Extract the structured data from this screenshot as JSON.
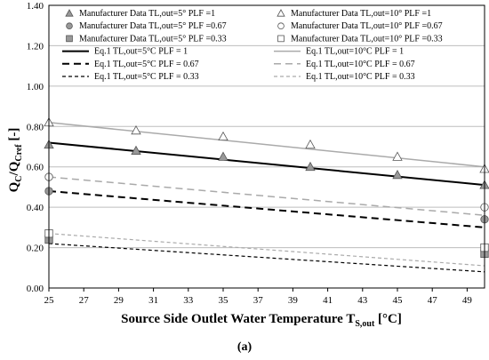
{
  "chart_data": {
    "type": "scatter",
    "xlabel": "Source Side Outlet Water Temperature T",
    "xlabel_sub": "S,out",
    "xlabel_unit": " [°C]",
    "ylabel": "Q",
    "ylabel_sub1": "C",
    "ylabel_mid": "/Q",
    "ylabel_sub2": "Cref",
    "ylabel_unit": " [-]",
    "caption": "(a)",
    "xlim": [
      25,
      50
    ],
    "ylim": [
      0,
      1.4
    ],
    "x_ticks": [
      "25",
      "27",
      "29",
      "31",
      "33",
      "35",
      "37",
      "39",
      "41",
      "43",
      "45",
      "47",
      "49"
    ],
    "x_tick_values": [
      25,
      27,
      29,
      31,
      33,
      35,
      37,
      39,
      41,
      43,
      45,
      47,
      49
    ],
    "y_ticks": [
      "0.00",
      "0.20",
      "0.40",
      "0.60",
      "0.80",
      "1.00",
      "1.20",
      "1.40"
    ],
    "y_tick_values": [
      0,
      0.2,
      0.4,
      0.6,
      0.8,
      1.0,
      1.2,
      1.4
    ],
    "grid": "horizontal",
    "legend_position": "top",
    "series": [
      {
        "name": "Manufacturer Data TL,out=5° PLF =1",
        "kind": "marker",
        "marker": "triangle",
        "fill": "#999999",
        "x": [
          25,
          30,
          35,
          40,
          45,
          50
        ],
        "y": [
          0.71,
          0.68,
          0.65,
          0.6,
          0.56,
          0.51
        ]
      },
      {
        "name": "Manufacturer Data TL,out=10° PLF =1",
        "kind": "marker",
        "marker": "triangle",
        "fill": "#ffffff",
        "x": [
          25,
          30,
          35,
          40,
          45,
          50
        ],
        "y": [
          0.82,
          0.78,
          0.75,
          0.71,
          0.65,
          0.59
        ]
      },
      {
        "name": "Manufacturer Data TL,out=5° PLF =0.67",
        "kind": "marker",
        "marker": "circle",
        "fill": "#999999",
        "x": [
          25,
          50
        ],
        "y": [
          0.48,
          0.34
        ]
      },
      {
        "name": "Manufacturer Data TL,out=10° PLF =0.67",
        "kind": "marker",
        "marker": "circle",
        "fill": "#ffffff",
        "x": [
          25,
          50
        ],
        "y": [
          0.55,
          0.4
        ]
      },
      {
        "name": "Manufacturer Data TL,out=5° PLF =0.33",
        "kind": "marker",
        "marker": "square",
        "fill": "#999999",
        "x": [
          25,
          50
        ],
        "y": [
          0.24,
          0.17
        ]
      },
      {
        "name": "Manufacturer Data TL,out=10° PLF =0.33",
        "kind": "marker",
        "marker": "square",
        "fill": "#ffffff",
        "x": [
          25,
          50
        ],
        "y": [
          0.27,
          0.2
        ]
      },
      {
        "name": "Eq.1 TL,out=5°C PLF = 1",
        "kind": "line",
        "color": "#000000",
        "width": 2,
        "dash": "",
        "x": [
          25,
          50
        ],
        "y": [
          0.72,
          0.51
        ]
      },
      {
        "name": "Eq.1 TL,out=10°C PLF = 1",
        "kind": "line",
        "color": "#aaaaaa",
        "width": 1.5,
        "dash": "",
        "x": [
          25,
          50
        ],
        "y": [
          0.82,
          0.6
        ]
      },
      {
        "name": "Eq.1 TL,out=5°C PLF = 0.67",
        "kind": "line",
        "color": "#000000",
        "width": 2,
        "dash": "8,5",
        "x": [
          25,
          50
        ],
        "y": [
          0.48,
          0.3
        ]
      },
      {
        "name": "Eq.1 TL,out=10°C PLF = 0.67",
        "kind": "line",
        "color": "#aaaaaa",
        "width": 1.5,
        "dash": "8,5",
        "x": [
          25,
          50
        ],
        "y": [
          0.55,
          0.36
        ]
      },
      {
        "name": "Eq.1 TL,out=5°C PLF = 0.33",
        "kind": "line",
        "color": "#000000",
        "width": 1.2,
        "dash": "4,3",
        "x": [
          25,
          50
        ],
        "y": [
          0.22,
          0.08
        ]
      },
      {
        "name": "Eq.1 TL,out=10°C PLF = 0.33",
        "kind": "line",
        "color": "#aaaaaa",
        "width": 1.2,
        "dash": "4,3",
        "x": [
          25,
          50
        ],
        "y": [
          0.27,
          0.11
        ]
      }
    ]
  }
}
